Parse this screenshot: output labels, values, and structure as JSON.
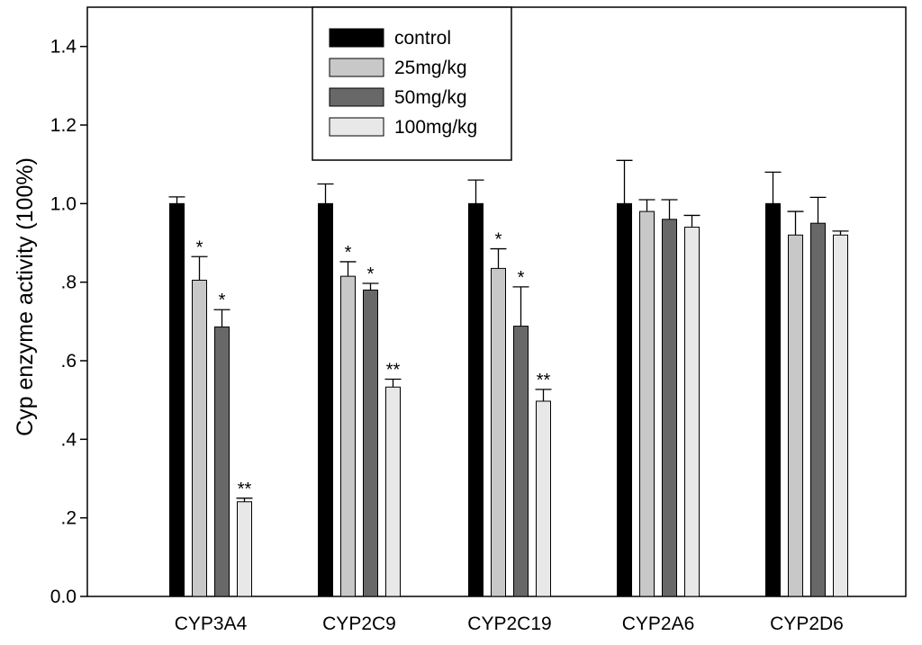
{
  "chart_data": {
    "type": "bar",
    "title": "",
    "xlabel": "",
    "ylabel": "Cyp enzyme activity (100%)",
    "ylim": [
      0.0,
      1.5
    ],
    "yticks": [
      {
        "value": 0.0,
        "label": "0.0"
      },
      {
        "value": 0.2,
        "label": ".2"
      },
      {
        "value": 0.4,
        "label": ".4"
      },
      {
        "value": 0.6,
        "label": ".6"
      },
      {
        "value": 0.8,
        "label": ".8"
      },
      {
        "value": 1.0,
        "label": "1.0"
      },
      {
        "value": 1.2,
        "label": "1.2"
      },
      {
        "value": 1.4,
        "label": "1.4"
      }
    ],
    "categories": [
      "CYP3A4",
      "CYP2C9",
      "CYP2C19",
      "CYP2A6",
      "CYP2D6"
    ],
    "legend_position": "top-left",
    "grid": false,
    "series": [
      {
        "name": "control",
        "color": "#000000",
        "values": [
          1.0,
          1.0,
          1.0,
          1.0,
          1.0
        ],
        "errors": [
          0.017,
          0.05,
          0.06,
          0.11,
          0.08
        ],
        "significance": [
          "",
          "",
          "",
          "",
          ""
        ]
      },
      {
        "name": "25mg/kg",
        "color": "#c8c8c8",
        "values": [
          0.805,
          0.815,
          0.835,
          0.98,
          0.92
        ],
        "errors": [
          0.06,
          0.037,
          0.05,
          0.03,
          0.06
        ],
        "significance": [
          "*",
          "*",
          "*",
          "",
          ""
        ]
      },
      {
        "name": "50mg/kg",
        "color": "#686868",
        "values": [
          0.686,
          0.78,
          0.688,
          0.96,
          0.95
        ],
        "errors": [
          0.044,
          0.017,
          0.1,
          0.05,
          0.066
        ],
        "significance": [
          "*",
          "*",
          "*",
          "",
          ""
        ]
      },
      {
        "name": "100mg/kg",
        "color": "#e8e8e8",
        "values": [
          0.241,
          0.533,
          0.497,
          0.94,
          0.92
        ],
        "errors": [
          0.009,
          0.02,
          0.03,
          0.03,
          0.01
        ],
        "significance": [
          "**",
          "**",
          "**",
          "",
          ""
        ]
      }
    ]
  }
}
